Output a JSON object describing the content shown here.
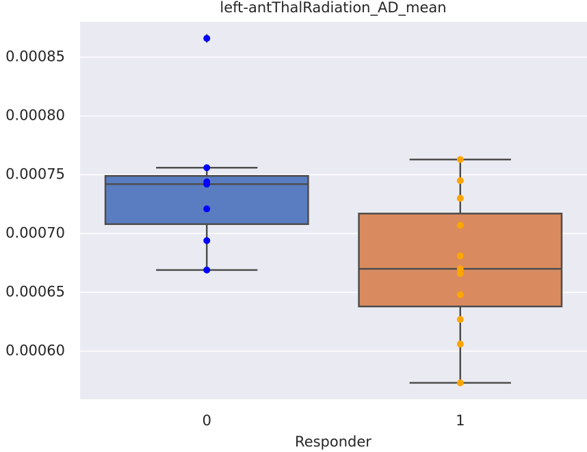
{
  "chart_data": {
    "type": "box",
    "title": "left-antThalRadiation_AD_mean",
    "x_label": "Responder",
    "categories": [
      "0",
      "1"
    ],
    "boxes": [
      {
        "whislo": 0.000669,
        "q1": 0.000708,
        "med": 0.000742,
        "q3": 0.000749,
        "whishi": 0.000756,
        "fliers": [
          0.000866
        ],
        "color": "#5a7dc2"
      },
      {
        "whislo": 0.000573,
        "q1": 0.000638,
        "med": 0.00067,
        "q3": 0.000717,
        "whishi": 0.000763,
        "fliers": [],
        "color": "#d98b5f"
      }
    ],
    "points": [
      {
        "color": "#0000ff",
        "values": [
          0.000866,
          0.000756,
          0.000744,
          0.000742,
          0.000721,
          0.000694,
          0.000669
        ]
      },
      {
        "color": "#ffa500",
        "values": [
          0.000763,
          0.000745,
          0.00073,
          0.000707,
          0.000681,
          0.00067,
          0.000666,
          0.000648,
          0.000627,
          0.000606,
          0.000573
        ]
      }
    ],
    "ylim": [
      0.000559,
      0.00088
    ],
    "yticks": [
      {
        "value": 0.0006,
        "label": "0.00060"
      },
      0.00065,
      {
        "value": 0.0007,
        "label": "0.00070"
      },
      0.00075,
      {
        "value": 0.0008,
        "label": "0.00080"
      },
      0.00085
    ],
    "grid": true,
    "background": "#eaeaf2",
    "line_color": "#4d4d4d"
  }
}
